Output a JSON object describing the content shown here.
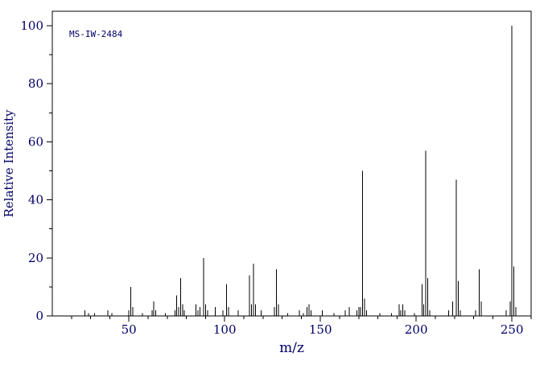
{
  "chart_data": {
    "type": "bar",
    "title": "",
    "annotation": "MS-IW-2484",
    "xlabel": "m/z",
    "ylabel": "Relative Intensity",
    "xlim": [
      10,
      260
    ],
    "ylim": [
      0,
      105
    ],
    "x_major_ticks": [
      50,
      100,
      150,
      200,
      250
    ],
    "x_minor_step": 10,
    "y_major_ticks": [
      0,
      20,
      40,
      60,
      80,
      100
    ],
    "y_minor_step": 10,
    "grid": false,
    "legend": "none",
    "colors": {
      "line": "#000000",
      "text": "#000066",
      "background": "#ffffff"
    },
    "peaks": [
      [
        27,
        2
      ],
      [
        29,
        1
      ],
      [
        32,
        1
      ],
      [
        39,
        2
      ],
      [
        41,
        1
      ],
      [
        50,
        2
      ],
      [
        51,
        10
      ],
      [
        52,
        3
      ],
      [
        57,
        1
      ],
      [
        62,
        2
      ],
      [
        63,
        5
      ],
      [
        64,
        2
      ],
      [
        69,
        1
      ],
      [
        74,
        2
      ],
      [
        75,
        7
      ],
      [
        76,
        3
      ],
      [
        77,
        13
      ],
      [
        78,
        4
      ],
      [
        79,
        2
      ],
      [
        85,
        4
      ],
      [
        86,
        2
      ],
      [
        87,
        3
      ],
      [
        89,
        20
      ],
      [
        90,
        4
      ],
      [
        91,
        2
      ],
      [
        95,
        3
      ],
      [
        99,
        2
      ],
      [
        101,
        11
      ],
      [
        102,
        3
      ],
      [
        107,
        2
      ],
      [
        113,
        14
      ],
      [
        114,
        4
      ],
      [
        115,
        18
      ],
      [
        116,
        4
      ],
      [
        119,
        2
      ],
      [
        126,
        3
      ],
      [
        127,
        16
      ],
      [
        128,
        4
      ],
      [
        133,
        1
      ],
      [
        139,
        2
      ],
      [
        141,
        1
      ],
      [
        143,
        3
      ],
      [
        144,
        4
      ],
      [
        145,
        2
      ],
      [
        151,
        2
      ],
      [
        157,
        1
      ],
      [
        163,
        2
      ],
      [
        165,
        3
      ],
      [
        169,
        2
      ],
      [
        170,
        3
      ],
      [
        171,
        3
      ],
      [
        172,
        50
      ],
      [
        173,
        6
      ],
      [
        174,
        2
      ],
      [
        181,
        1
      ],
      [
        187,
        1
      ],
      [
        191,
        4
      ],
      [
        192,
        2
      ],
      [
        193,
        4
      ],
      [
        194,
        2
      ],
      [
        199,
        1
      ],
      [
        203,
        11
      ],
      [
        204,
        4
      ],
      [
        205,
        57
      ],
      [
        206,
        13
      ],
      [
        207,
        2
      ],
      [
        217,
        2
      ],
      [
        219,
        5
      ],
      [
        221,
        47
      ],
      [
        222,
        12
      ],
      [
        223,
        2
      ],
      [
        231,
        2
      ],
      [
        233,
        16
      ],
      [
        234,
        5
      ],
      [
        247,
        2
      ],
      [
        249,
        5
      ],
      [
        250,
        100
      ],
      [
        251,
        17
      ],
      [
        252,
        3
      ]
    ]
  }
}
